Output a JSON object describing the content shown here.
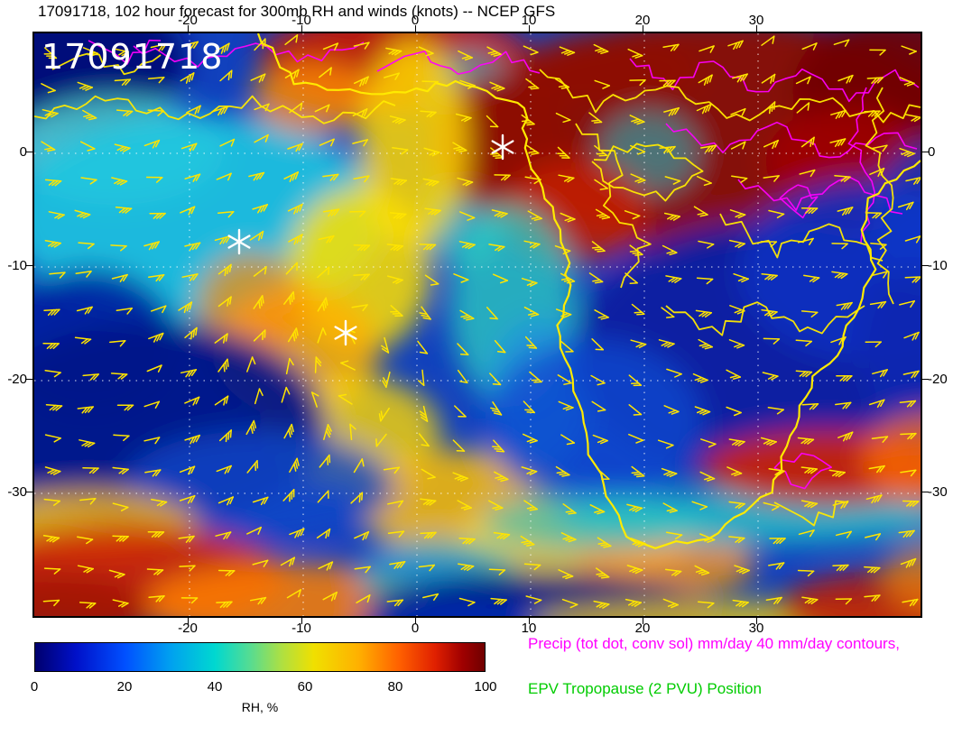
{
  "title": "17091718, 102 hour forecast for 300mb RH and winds (knots) -- NCEP GFS",
  "map": {
    "overlay_label": "17091718",
    "x_tick_labels": [
      "-20",
      "-10",
      "0",
      "10",
      "20",
      "30"
    ],
    "y_tick_labels": [
      "0",
      "-10",
      "-20",
      "-30"
    ]
  },
  "colorbar": {
    "label": "RH, %",
    "tick_labels": [
      "0",
      "20",
      "40",
      "60",
      "80",
      "100"
    ]
  },
  "legend": {
    "precip_label": "Precip (tot dot, conv sol) mm/day 40 mm/day contours,",
    "precip_color": "#ff00ff",
    "epv_label": "EPV Tropopause (2 PVU) Position",
    "epv_color": "#00cc00"
  },
  "chart_data": {
    "type": "heatmap",
    "title": "17091718, 102 hour forecast for 300mb RH and winds (knots) -- NCEP GFS",
    "model": "NCEP GFS",
    "init_datetime": "17091718",
    "forecast_hour": 102,
    "level_mb": 300,
    "field": "Relative humidity",
    "field_units": "%",
    "wind_units": "knots",
    "x_axis": {
      "ticks": [
        -20,
        -10,
        0,
        10,
        20,
        30
      ],
      "approx_range": [
        -33,
        40
      ],
      "units": "degrees_longitude"
    },
    "y_axis": {
      "ticks": [
        0,
        -10,
        -20,
        -30
      ],
      "approx_range": [
        10.5,
        -41
      ],
      "units": "degrees_latitude"
    },
    "colorbar": {
      "label": "RH, %",
      "ticks": [
        0,
        20,
        40,
        60,
        80,
        100
      ],
      "range": [
        0,
        100
      ],
      "gradient": [
        "#00006e",
        "#0010c8",
        "#0050ff",
        "#00a0f0",
        "#00d8d0",
        "#58dc90",
        "#b0e040",
        "#f0e000",
        "#ffb000",
        "#ff6000",
        "#e02000",
        "#700000"
      ]
    },
    "grid": "dotted graticule every 10 degrees",
    "overlays": [
      {
        "name": "wind-barbs",
        "color": "#ffe400",
        "units": "knots"
      },
      {
        "name": "coastlines",
        "color": "#ffea00"
      },
      {
        "name": "precip-contours",
        "color": "#ff00ff",
        "label": "Precip (tot dot, conv sol) mm/day 40 mm/day contours,",
        "contour_interval_mm_per_day": 40
      },
      {
        "name": "epv-tropopause",
        "color": "#00cc00",
        "label": "EPV Tropopause (2 PVU) Position"
      },
      {
        "name": "storm-markers",
        "symbol": "*",
        "color": "#ffffff",
        "positions_lon_lat": [
          [
            7.7,
            0.4
          ],
          [
            -15.5,
            -8.0
          ],
          [
            -6.1,
            -16.0
          ]
        ]
      }
    ]
  }
}
